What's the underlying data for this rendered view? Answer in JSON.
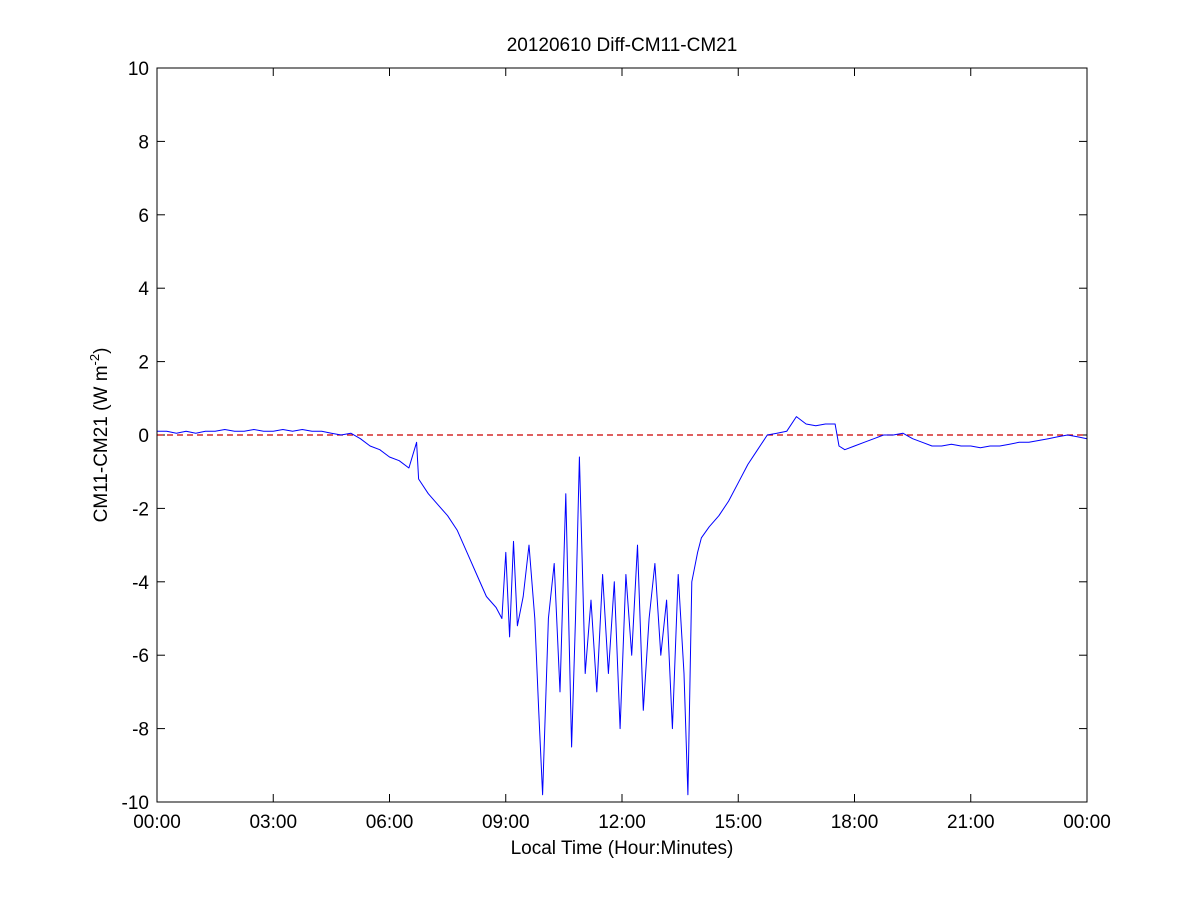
{
  "chart_data": {
    "type": "line",
    "title": "20120610 Diff-CM11-CM21",
    "xlabel": "Local Time (Hour:Minutes)",
    "ylabel": {
      "main": "CM11-CM21 (W m",
      "superscript": "-2",
      "close": ")"
    },
    "xlim": [
      0,
      24
    ],
    "ylim": [
      -10,
      10
    ],
    "x_tick_values": [
      0,
      3,
      6,
      9,
      12,
      15,
      18,
      21,
      24
    ],
    "x_tick_labels": [
      "00:00",
      "03:00",
      "06:00",
      "09:00",
      "12:00",
      "15:00",
      "18:00",
      "21:00",
      "00:00"
    ],
    "y_tick_values": [
      -10,
      -8,
      -6,
      -4,
      -2,
      0,
      2,
      4,
      6,
      8,
      10
    ],
    "y_tick_labels": [
      "-10",
      "-8",
      "-6",
      "-4",
      "-2",
      "0",
      "2",
      "4",
      "6",
      "8",
      "10"
    ],
    "grid": false,
    "colors": {
      "series": "#0000ff",
      "reference": "#cc0000",
      "axes": "#000000"
    },
    "reference_line": {
      "y": 0,
      "style": "dashed"
    },
    "series": [
      {
        "x": [
          0.0,
          0.25,
          0.5,
          0.75,
          1.0,
          1.25,
          1.5,
          1.75,
          2.0,
          2.25,
          2.5,
          2.75,
          3.0,
          3.25,
          3.5,
          3.75,
          4.0,
          4.25,
          4.5,
          4.75,
          5.0,
          5.25,
          5.5,
          5.75,
          6.0,
          6.25,
          6.5,
          6.7,
          6.75,
          7.0,
          7.25,
          7.5,
          7.75,
          8.0,
          8.25,
          8.5,
          8.75,
          8.9,
          9.0,
          9.1,
          9.2,
          9.3,
          9.45,
          9.6,
          9.75,
          9.85,
          9.95,
          10.1,
          10.25,
          10.4,
          10.55,
          10.7,
          10.8,
          10.9,
          11.05,
          11.2,
          11.35,
          11.5,
          11.65,
          11.8,
          11.95,
          12.1,
          12.25,
          12.4,
          12.55,
          12.7,
          12.85,
          13.0,
          13.15,
          13.3,
          13.45,
          13.6,
          13.7,
          13.8,
          13.95,
          14.05,
          14.25,
          14.5,
          14.75,
          15.0,
          15.25,
          15.5,
          15.75,
          16.0,
          16.25,
          16.5,
          16.75,
          17.0,
          17.25,
          17.5,
          17.6,
          17.75,
          18.0,
          18.25,
          18.5,
          18.75,
          19.0,
          19.25,
          19.5,
          19.75,
          20.0,
          20.25,
          20.5,
          20.75,
          21.0,
          21.25,
          21.5,
          21.75,
          22.0,
          22.25,
          22.5,
          22.75,
          23.0,
          23.25,
          23.5,
          23.75,
          24.0
        ],
        "y": [
          0.1,
          0.1,
          0.05,
          0.1,
          0.05,
          0.1,
          0.1,
          0.15,
          0.1,
          0.1,
          0.15,
          0.1,
          0.1,
          0.15,
          0.1,
          0.15,
          0.1,
          0.1,
          0.05,
          0.0,
          0.05,
          -0.1,
          -0.3,
          -0.4,
          -0.6,
          -0.7,
          -0.9,
          -0.2,
          -1.2,
          -1.6,
          -1.9,
          -2.2,
          -2.6,
          -3.2,
          -3.8,
          -4.4,
          -4.7,
          -5.0,
          -3.2,
          -5.5,
          -2.9,
          -5.2,
          -4.4,
          -3.0,
          -5.0,
          -7.5,
          -9.8,
          -5.0,
          -3.5,
          -7.0,
          -1.6,
          -8.5,
          -5.0,
          -0.6,
          -6.5,
          -4.5,
          -7.0,
          -3.8,
          -6.5,
          -4.0,
          -8.0,
          -3.8,
          -6.0,
          -3.0,
          -7.5,
          -5.0,
          -3.5,
          -6.0,
          -4.5,
          -8.0,
          -3.8,
          -6.5,
          -9.8,
          -4.0,
          -3.2,
          -2.8,
          -2.5,
          -2.2,
          -1.8,
          -1.3,
          -0.8,
          -0.4,
          0.0,
          0.05,
          0.1,
          0.5,
          0.3,
          0.25,
          0.3,
          0.3,
          -0.3,
          -0.4,
          -0.3,
          -0.2,
          -0.1,
          0.0,
          0.0,
          0.05,
          -0.1,
          -0.2,
          -0.3,
          -0.3,
          -0.25,
          -0.3,
          -0.3,
          -0.35,
          -0.3,
          -0.3,
          -0.25,
          -0.2,
          -0.2,
          -0.15,
          -0.1,
          -0.05,
          0.0,
          -0.05,
          -0.1
        ]
      }
    ]
  }
}
